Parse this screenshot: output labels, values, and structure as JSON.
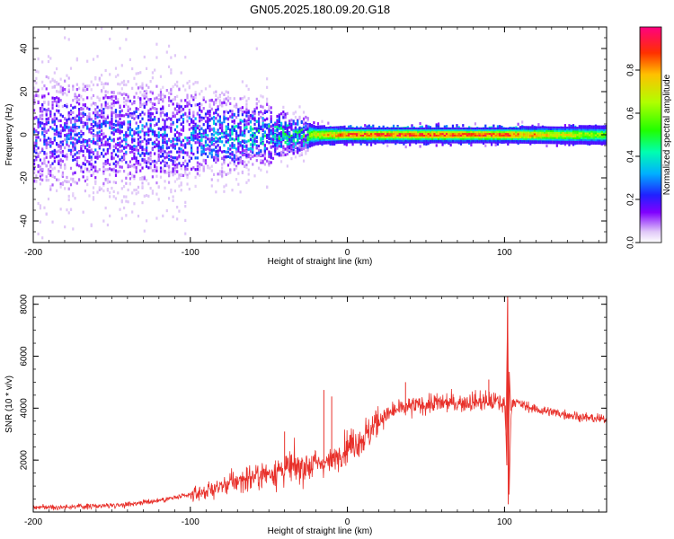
{
  "title": "GN05.2025.180.09.20.G18",
  "chart_data": [
    {
      "type": "heatmap",
      "title": "GN05.2025.180.09.20.G18",
      "xlabel": "Height of straight line (km)",
      "ylabel": "Frequency (Hz)",
      "xlim": [
        -200,
        165
      ],
      "ylim": [
        -50,
        50
      ],
      "xticks": [
        -200,
        -100,
        0,
        100
      ],
      "yticks": [
        -40,
        -20,
        0,
        20,
        40
      ],
      "colorbar": {
        "label": "Normalized spectral amplitude",
        "range": [
          0,
          1
        ],
        "ticks": [
          "0.0",
          "0.2",
          "0.4",
          "0.6",
          "0.8"
        ],
        "colormap": [
          "#ffffff",
          "#d0b0f8",
          "#8000ff",
          "#2020ff",
          "#00c0ff",
          "#00ffa0",
          "#40ff00",
          "#c0ff00",
          "#ffc000",
          "#ff4000",
          "#ff0080"
        ]
      },
      "band_profile": {
        "x": [
          -200,
          -150,
          -100,
          -50,
          -30,
          -20,
          0,
          50,
          100,
          165
        ],
        "half_width_hz": [
          16,
          14,
          12,
          8,
          5,
          3,
          2.5,
          2.5,
          2.5,
          3
        ],
        "peak_amplitude": [
          0.25,
          0.3,
          0.35,
          0.45,
          0.5,
          0.7,
          0.9,
          0.9,
          0.9,
          0.6
        ]
      }
    },
    {
      "type": "line",
      "xlabel": "Height of straight line (km)",
      "ylabel": "SNR (10 * v/v)",
      "xlim": [
        -200,
        165
      ],
      "ylim": [
        0,
        8300
      ],
      "xticks": [
        -200,
        -100,
        0,
        100
      ],
      "yticks": [
        2000,
        4000,
        6000,
        8000
      ],
      "color": "#e8302a",
      "series": [
        {
          "x": [
            -200,
            -180,
            -160,
            -140,
            -120,
            -100,
            -90,
            -80,
            -70,
            -60,
            -50,
            -40,
            -30,
            -20,
            -15,
            -10,
            -5,
            0,
            5,
            10,
            15,
            20,
            30,
            40,
            50,
            60,
            70,
            80,
            90,
            95,
            100,
            101,
            102,
            103,
            104,
            105,
            110,
            120,
            130,
            140,
            150,
            165
          ],
          "y": [
            180,
            200,
            230,
            300,
            450,
            650,
            800,
            1000,
            1200,
            1350,
            1500,
            1650,
            1750,
            1850,
            1900,
            1950,
            2250,
            2550,
            2700,
            2850,
            3150,
            3550,
            3900,
            4050,
            4150,
            4200,
            4200,
            4250,
            4250,
            4250,
            4150,
            3000,
            8200,
            700,
            3500,
            4300,
            4150,
            3950,
            3850,
            3750,
            3650,
            3550
          ]
        }
      ],
      "spikes": [
        {
          "x": -40,
          "y": 3100
        },
        {
          "x": -15,
          "y": 4700
        },
        {
          "x": -10,
          "y": 4450
        },
        {
          "x": 37,
          "y": 5000
        },
        {
          "x": 90,
          "y": 5100
        }
      ]
    }
  ]
}
